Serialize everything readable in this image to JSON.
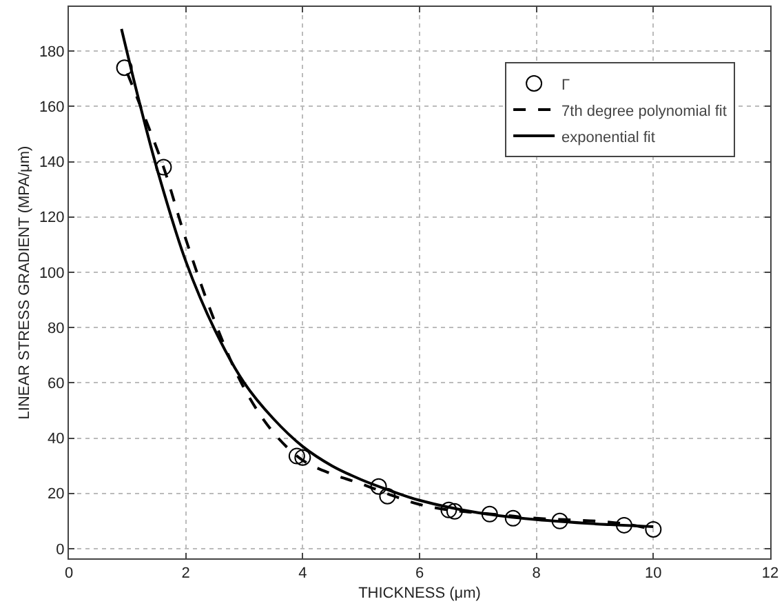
{
  "chart_data": {
    "type": "scatter",
    "xlabel": "THICKNESS (μm)",
    "ylabel": "LINEAR STRESS GRADIENT (MPA/μm)",
    "xlim": [
      0,
      12
    ],
    "ylim": [
      -3.5,
      196
    ],
    "xticks": [
      0,
      2,
      4,
      6,
      8,
      10,
      12
    ],
    "yticks": [
      0,
      20,
      40,
      60,
      80,
      100,
      120,
      140,
      160,
      180
    ],
    "grid": true,
    "legend": "top right",
    "series": [
      {
        "name": "Γ",
        "marker": "circle",
        "color": "#000000",
        "x": [
          0.95,
          1.62,
          3.9,
          4.0,
          5.3,
          5.45,
          6.5,
          6.6,
          7.2,
          7.6,
          8.4,
          9.5,
          10.0
        ],
        "values": [
          174,
          138,
          33.5,
          33,
          22.5,
          19,
          14,
          13.5,
          12.5,
          11,
          10,
          8.5,
          7
        ]
      },
      {
        "name": "7th degree polynomial fit",
        "type": "line",
        "line_style": "dashed",
        "color": "#000000",
        "x": [
          1,
          1.3,
          1.62,
          2,
          2.5,
          3,
          3.5,
          4,
          4.5,
          5,
          5.5,
          6,
          6.5,
          7,
          7.5,
          8,
          8.5,
          9,
          9.5,
          10
        ],
        "values": [
          172,
          156,
          138,
          112,
          82,
          58,
          42,
          32,
          27,
          23.5,
          19.5,
          16,
          14,
          13,
          12,
          11,
          10.5,
          10,
          9,
          7
        ]
      },
      {
        "name": "exponential fit",
        "type": "line",
        "line_style": "solid",
        "color": "#000000",
        "x": [
          0.9,
          1.2,
          1.5,
          2,
          2.5,
          3,
          3.5,
          4,
          4.5,
          5,
          5.5,
          6,
          7,
          8,
          9,
          10
        ],
        "values": [
          188,
          162,
          138,
          104,
          79,
          60,
          47,
          37,
          30,
          25,
          21,
          17.5,
          13,
          10.5,
          9,
          8
        ]
      }
    ]
  }
}
